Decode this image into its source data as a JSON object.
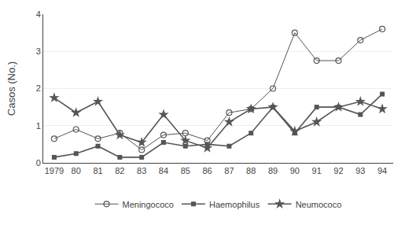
{
  "chart_data": {
    "type": "line",
    "categories": [
      "1979",
      "80",
      "81",
      "82",
      "83",
      "84",
      "85",
      "86",
      "87",
      "88",
      "89",
      "90",
      "91",
      "92",
      "93",
      "94"
    ],
    "series": [
      {
        "name": "Meningococo",
        "color": "#555555",
        "marker": "circle-open",
        "values": [
          0.65,
          0.9,
          0.65,
          0.8,
          0.35,
          0.75,
          0.8,
          0.6,
          1.35,
          1.45,
          2.0,
          3.5,
          2.75,
          2.75,
          3.3,
          3.6
        ]
      },
      {
        "name": "Haemophilus",
        "color": "#555555",
        "marker": "square",
        "values": [
          0.15,
          0.25,
          0.45,
          0.15,
          0.15,
          0.55,
          0.45,
          0.5,
          0.45,
          0.8,
          1.5,
          0.8,
          1.5,
          1.5,
          1.3,
          1.85
        ]
      },
      {
        "name": "Neumococo",
        "color": "#555555",
        "marker": "star",
        "values": [
          1.75,
          1.35,
          1.65,
          0.75,
          0.55,
          1.3,
          0.6,
          0.4,
          1.1,
          1.45,
          1.5,
          0.85,
          1.1,
          1.5,
          1.65,
          1.45
        ]
      }
    ],
    "ylabel": "Casos (No.)",
    "ylim": [
      0,
      4
    ],
    "yticks": [
      0,
      1,
      2,
      3,
      4
    ],
    "grid": true,
    "legend": "bottom"
  }
}
